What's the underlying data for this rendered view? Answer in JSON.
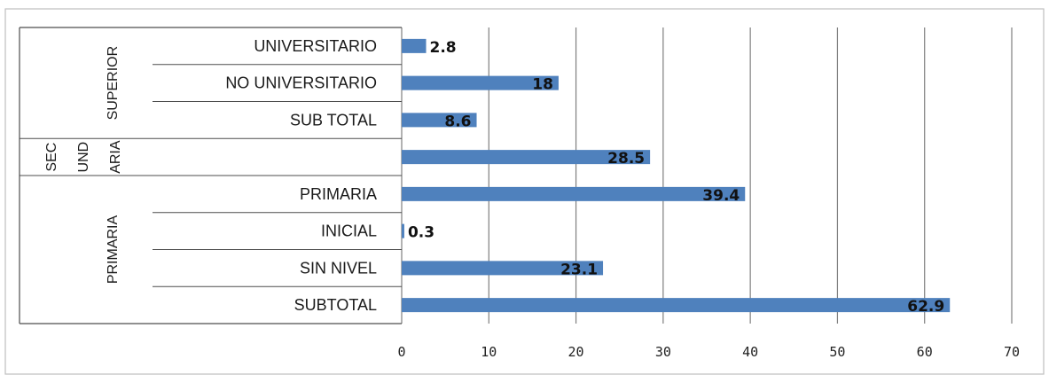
{
  "chart_data": {
    "type": "bar",
    "orientation": "horizontal",
    "groups": [
      {
        "label": "SUPERIOR",
        "categories": [
          "UNIVERSITARIO",
          "NO UNIVERSITARIO",
          "SUB TOTAL"
        ]
      },
      {
        "label_lines": [
          "SEC",
          "UND",
          "ARIA"
        ],
        "categories": [
          ""
        ]
      },
      {
        "label": "PRIMARIA",
        "categories": [
          "PRIMARIA",
          "INICIAL",
          "SIN NIVEL",
          "SUBTOTAL"
        ]
      }
    ],
    "categories": [
      "UNIVERSITARIO",
      "NO UNIVERSITARIO",
      "SUB TOTAL",
      "",
      "PRIMARIA",
      "INICIAL",
      "SIN NIVEL",
      "SUBTOTAL"
    ],
    "values": [
      2.8,
      18,
      8.6,
      28.5,
      39.4,
      0.3,
      23.1,
      62.9
    ],
    "value_labels": [
      "2.8",
      "18",
      "8.6",
      "28.5",
      "39.4",
      "0.3",
      "23.1",
      "62.9"
    ],
    "xlim": [
      0,
      70
    ],
    "xticks": [
      "0",
      "10",
      "20",
      "30",
      "40",
      "50",
      "60",
      "70"
    ],
    "grid": "vertical",
    "legend": "none",
    "colors": {
      "bar": "#4f81bd",
      "grid": "#7f7f7f",
      "frame": "#bfbfbf"
    }
  }
}
